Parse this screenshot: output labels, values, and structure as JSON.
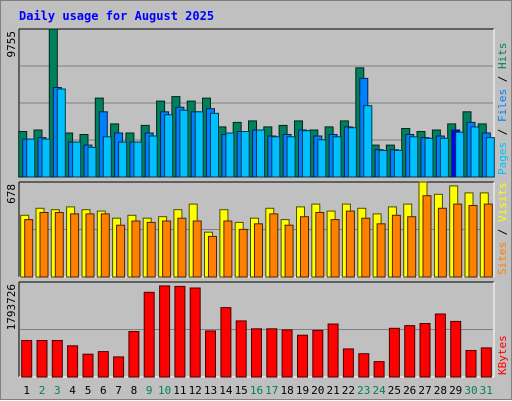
{
  "colors": {
    "background": "#c0c0c0",
    "plot_bg": "#c0c0c0",
    "title": "#0000ff",
    "hits": "#00805c",
    "files": "#0080ff",
    "pages": "#00c0ff",
    "visits": "#ffff00",
    "sites": "#ff8000",
    "kbytes": "#ff0000",
    "weekday": "#000000",
    "weekend": "#00805c",
    "highlight": "#0000ff"
  },
  "chart_data": {
    "title": "Daily usage for August 2025",
    "days": [
      "1",
      "2",
      "3",
      "4",
      "5",
      "6",
      "7",
      "8",
      "9",
      "10",
      "11",
      "12",
      "13",
      "14",
      "15",
      "16",
      "17",
      "18",
      "19",
      "20",
      "21",
      "22",
      "23",
      "24",
      "25",
      "26",
      "27",
      "28",
      "29",
      "30",
      "31"
    ],
    "weekend_days": [
      "2",
      "3",
      "9",
      "10",
      "16",
      "17",
      "23",
      "24",
      "30",
      "31"
    ],
    "highlighted_day": "29",
    "panels": [
      {
        "type": "bar",
        "name": "hits-files-pages",
        "ymax_label": "9755",
        "ymax": 9755,
        "right_labels": [
          "Pages",
          "Files",
          "Hits"
        ],
        "series": [
          {
            "name": "Hits",
            "values": [
              3000,
              3100,
              9755,
              2900,
              2800,
              5200,
              3500,
              2900,
              3400,
              5000,
              5300,
              5000,
              5200,
              3300,
              3600,
              3700,
              3300,
              3400,
              3700,
              3100,
              3300,
              3700,
              7200,
              2100,
              2100,
              3200,
              3000,
              3100,
              3500,
              4300,
              3500
            ]
          },
          {
            "name": "Files",
            "values": [
              2500,
              2600,
              5900,
              2300,
              2100,
              4300,
              2900,
              2300,
              2900,
              4300,
              4600,
              4300,
              4500,
              2800,
              3000,
              3100,
              2700,
              2800,
              3100,
              2700,
              2800,
              3300,
              6500,
              1800,
              1800,
              2800,
              2600,
              2700,
              3100,
              3600,
              2900
            ]
          },
          {
            "name": "Pages",
            "values": [
              2500,
              2500,
              5800,
              2300,
              1950,
              2650,
              2300,
              2300,
              2700,
              4100,
              4400,
              4300,
              4200,
              2900,
              3000,
              3100,
              2650,
              2650,
              3050,
              2450,
              2650,
              3250,
              4700,
              1750,
              1750,
              2650,
              2550,
              2550,
              2950,
              3300,
              2600
            ]
          }
        ]
      },
      {
        "type": "bar",
        "name": "visits-sites",
        "ymax_label": "678",
        "ymax": 678,
        "right_labels": [
          "Sites",
          "Visits"
        ],
        "series": [
          {
            "name": "Visits",
            "values": [
              440,
              490,
              480,
              500,
              480,
              470,
              420,
              440,
              420,
              430,
              480,
              520,
              320,
              480,
              390,
              420,
              490,
              410,
              500,
              520,
              470,
              520,
              490,
              450,
              500,
              520,
              678,
              590,
              650,
              600,
              600
            ]
          },
          {
            "name": "Sites",
            "values": [
              410,
              460,
              460,
              450,
              450,
              450,
              370,
              400,
              390,
              400,
              420,
              400,
              290,
              400,
              340,
              380,
              450,
              370,
              430,
              460,
              410,
              470,
              420,
              380,
              440,
              430,
              580,
              490,
              520,
              510,
              520
            ]
          }
        ]
      },
      {
        "type": "bar",
        "name": "kbytes",
        "ymax_label": "1793726",
        "ymax": 1793726,
        "right_labels": [
          "KBytes"
        ],
        "series": [
          {
            "name": "KBytes",
            "values": [
              690000,
              690000,
              690000,
              590000,
              430000,
              480000,
              380000,
              860000,
              1600000,
              1720000,
              1710000,
              1680000,
              870000,
              1310000,
              1060000,
              910000,
              910000,
              890000,
              790000,
              880000,
              1000000,
              530000,
              440000,
              290000,
              920000,
              970000,
              1010000,
              1190000,
              1050000,
              500000,
              550000
            ]
          }
        ]
      }
    ]
  }
}
